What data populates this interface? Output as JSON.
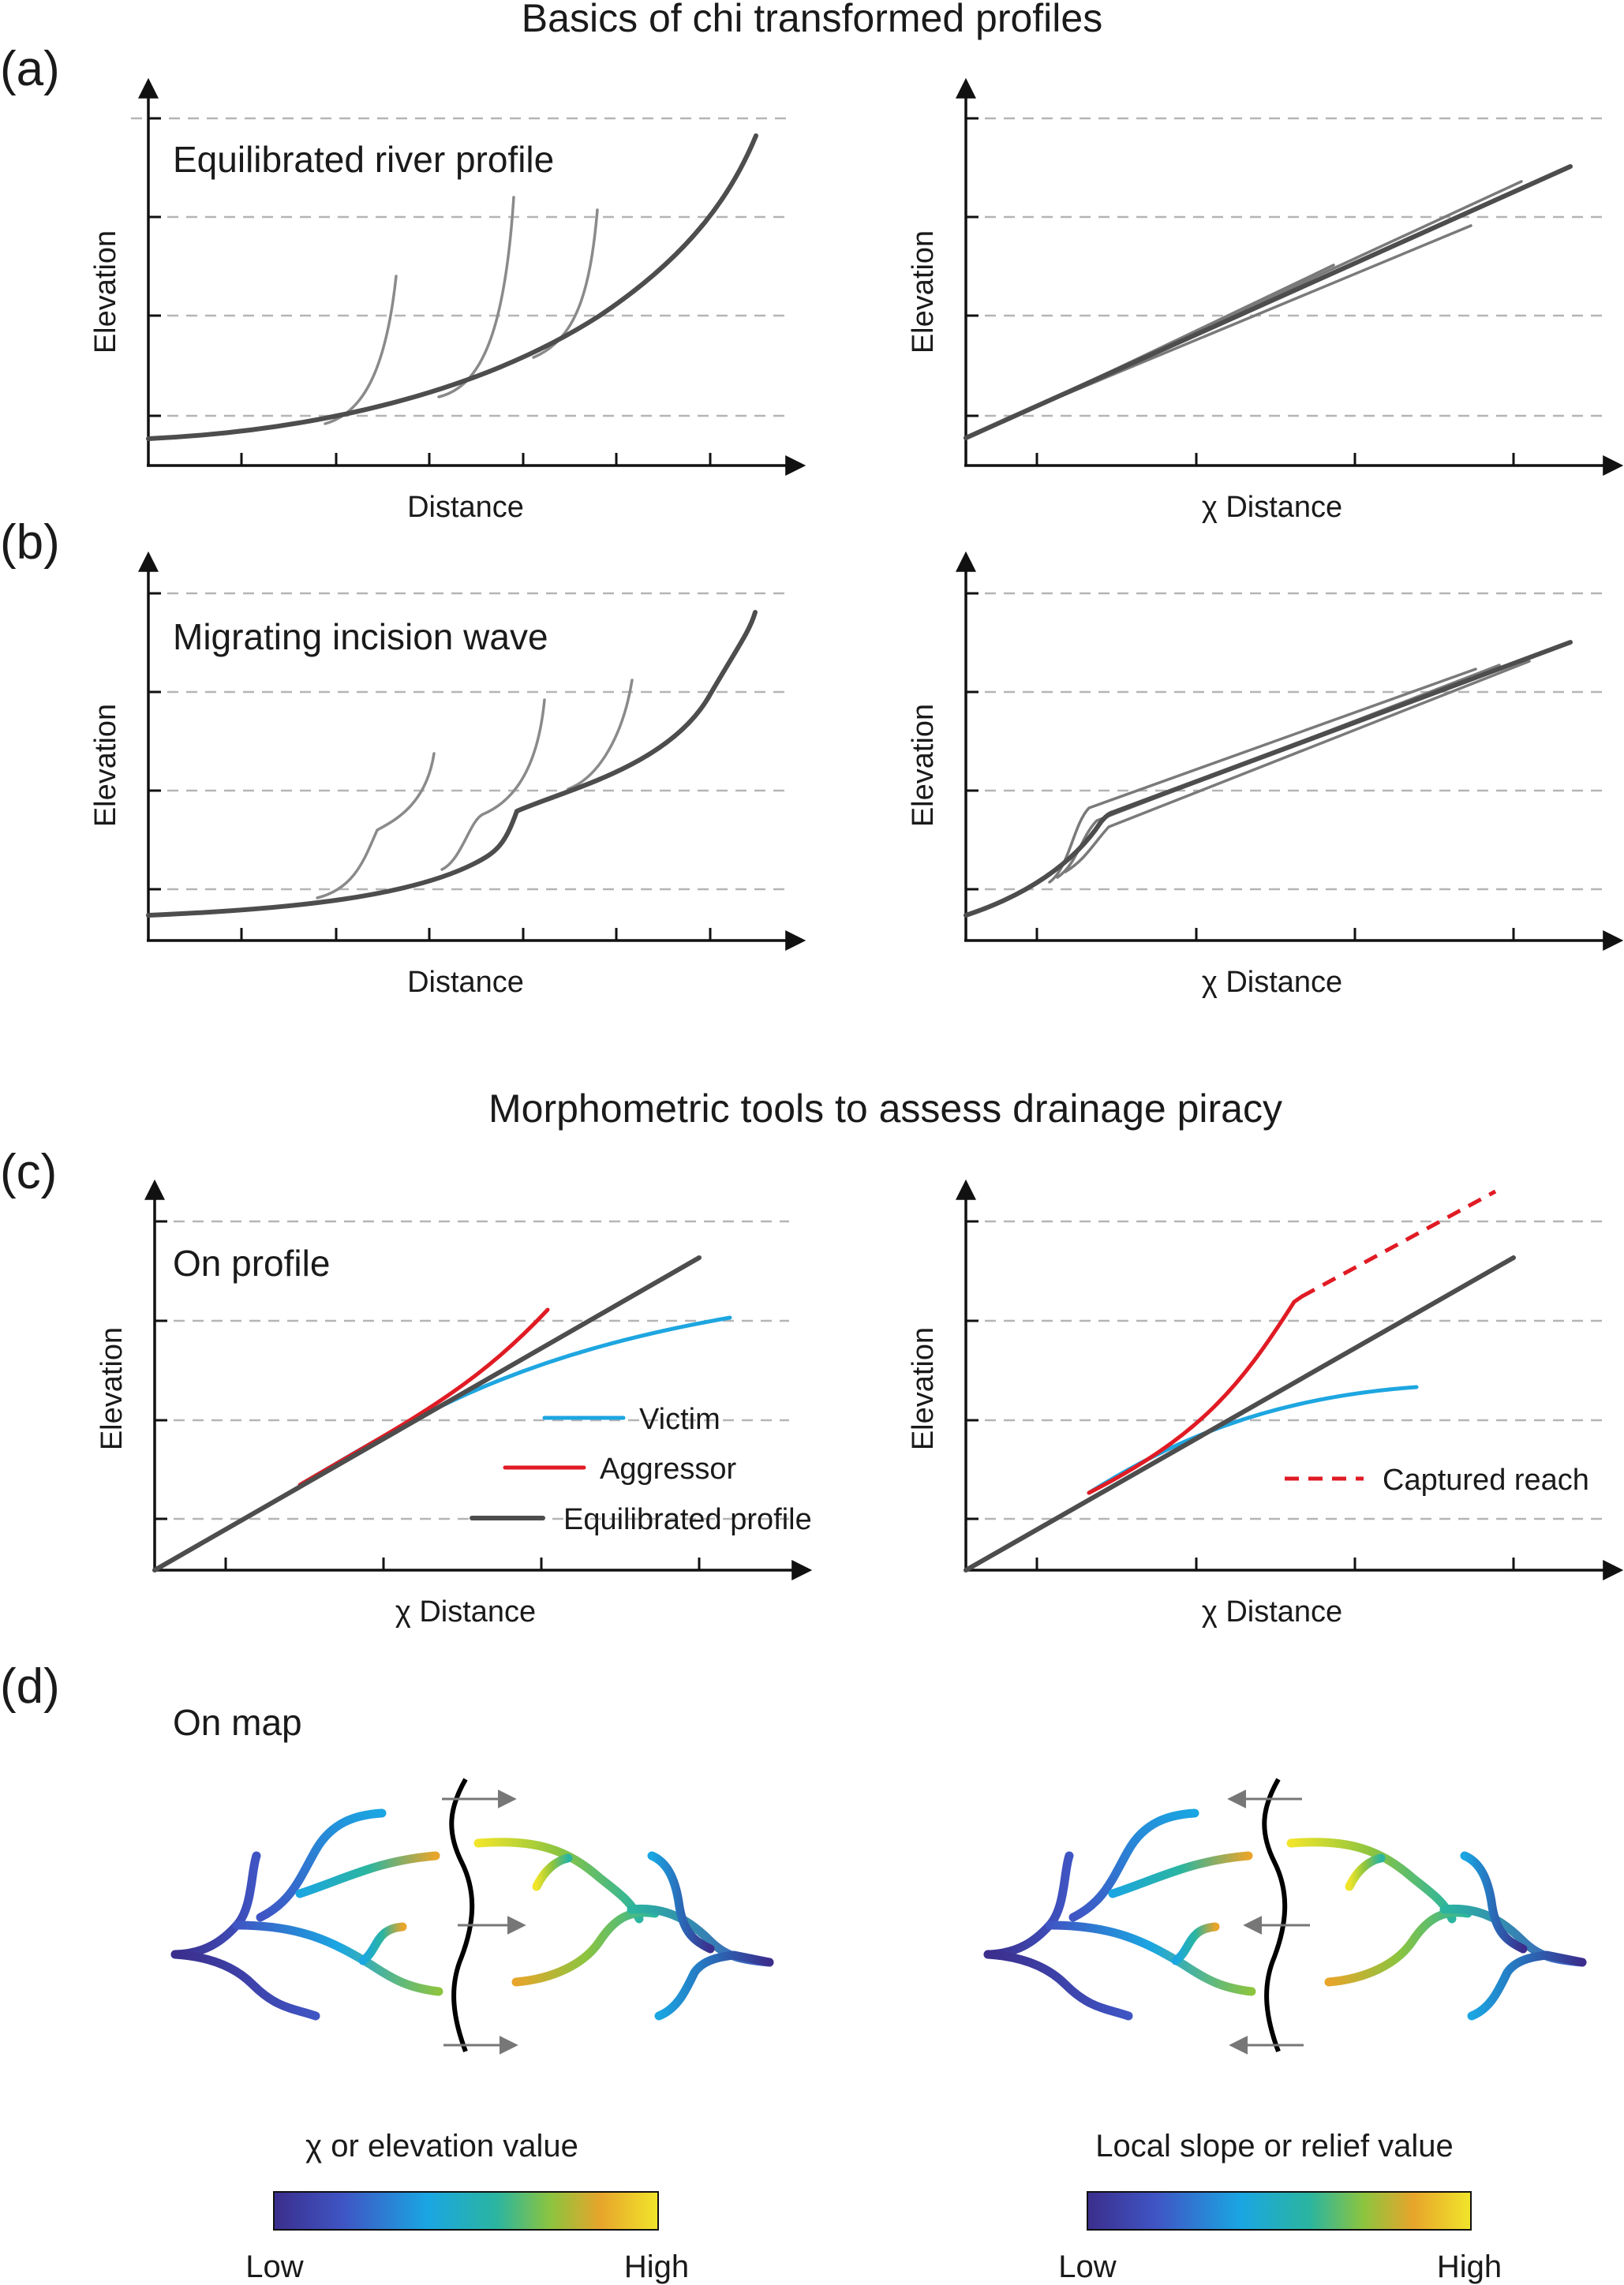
{
  "section1_title": "Basics of chi transformed profiles",
  "section2_title": "Morphometric tools to assess drainage piracy",
  "panels": {
    "a": {
      "label": "(a)",
      "note": "Equilibrated river profile",
      "left_xlabel": "Distance",
      "right_xlabel": "χ Distance",
      "ylabel": "Elevation"
    },
    "b": {
      "label": "(b)",
      "note": "Migrating incision wave",
      "left_xlabel": "Distance",
      "right_xlabel": "χ Distance",
      "ylabel": "Elevation"
    },
    "c": {
      "label": "(c)",
      "note": "On profile",
      "left_xlabel": "χ Distance",
      "right_xlabel": "χ Distance",
      "ylabel": "Elevation",
      "legend": {
        "victim": "Victim",
        "aggressor": "Aggressor",
        "equilibrated": "Equilibrated profile",
        "captured": "Captured reach"
      }
    },
    "d": {
      "label": "(d)",
      "note": "On map",
      "colorbar_left": {
        "title": "χ or elevation value",
        "low": "Low",
        "high": "High"
      },
      "colorbar_right": {
        "title": "Local slope or relief value",
        "low": "Low",
        "high": "High"
      }
    }
  },
  "colors": {
    "main_profile": "#4d4d4d",
    "tributary": "#8a8a8a",
    "victim": "#1ea6e0",
    "aggressor": "#e01b24",
    "colormap": [
      "#3b2e8c",
      "#3f55c4",
      "#1aa6e2",
      "#2bb5a0",
      "#8cc43f",
      "#e7a52b",
      "#f1e52b"
    ]
  }
}
